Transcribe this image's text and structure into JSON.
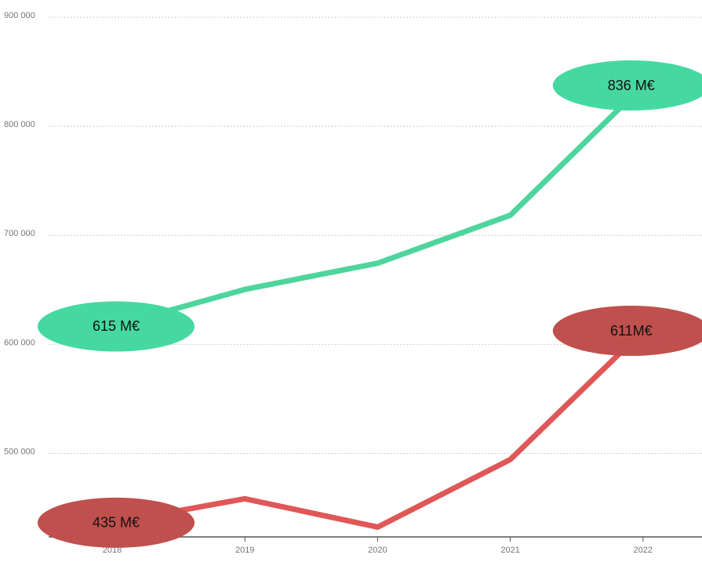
{
  "chart_data": {
    "type": "line",
    "categories": [
      "2018",
      "2019",
      "2020",
      "2021",
      "2022"
    ],
    "series": [
      {
        "color": "#4dd59c",
        "label_color": "#45d9a1",
        "values": [
          615000,
          649000,
          673000,
          717000,
          836000
        ],
        "value_labels": [
          "615 M€",
          null,
          null,
          null,
          "836 M€"
        ]
      },
      {
        "color": "#e05757",
        "label_color": "#c0504d",
        "values": [
          435000,
          457000,
          431000,
          493000,
          611000
        ],
        "value_labels": [
          "435 M€",
          null,
          null,
          null,
          "611M€"
        ]
      }
    ],
    "ylim": [
      422000,
      900000
    ],
    "yticks": [
      {
        "value": 500000,
        "label": "500 000"
      },
      {
        "value": 600000,
        "label": "600 000"
      },
      {
        "value": 700000,
        "label": "700 000"
      },
      {
        "value": 800000,
        "label": "800 000"
      },
      {
        "value": 900000,
        "label": "900 000"
      }
    ],
    "grid": true
  }
}
